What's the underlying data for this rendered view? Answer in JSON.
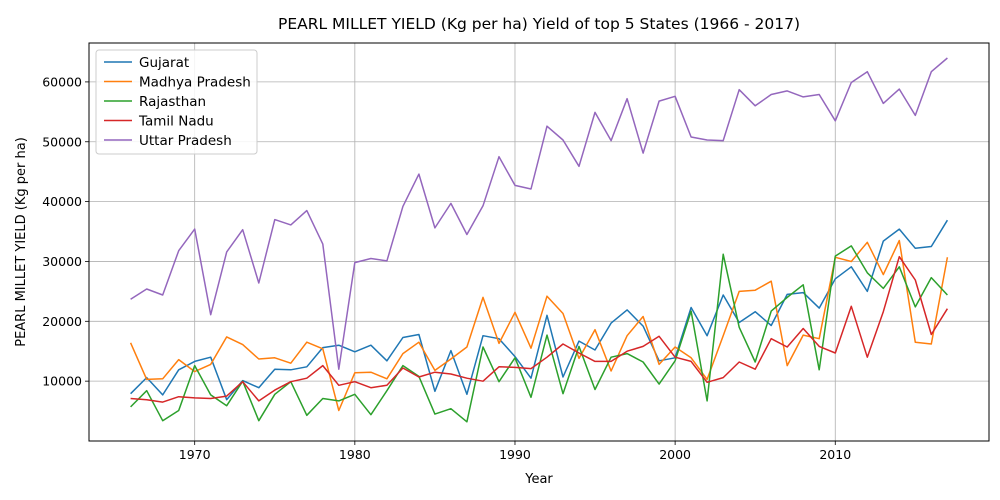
{
  "chart_data": {
    "type": "line",
    "title": "PEARL MILLET YIELD (Kg per ha) Yield of top 5 States (1966 - 2017)",
    "xlabel": "Year",
    "ylabel": "PEARL MILLET YIELD (Kg per ha)",
    "xlim": [
      1963.4,
      2019.6
    ],
    "ylim": [
      0,
      66500
    ],
    "xticks": [
      1970,
      1980,
      1990,
      2000,
      2010
    ],
    "yticks": [
      10000,
      20000,
      30000,
      40000,
      50000,
      60000
    ],
    "grid": true,
    "legend_position": "upper-left",
    "x": [
      1966,
      1967,
      1968,
      1969,
      1970,
      1971,
      1972,
      1973,
      1974,
      1975,
      1976,
      1977,
      1978,
      1979,
      1980,
      1981,
      1982,
      1983,
      1984,
      1985,
      1986,
      1987,
      1988,
      1989,
      1990,
      1991,
      1992,
      1993,
      1994,
      1995,
      1996,
      1997,
      1998,
      1999,
      2000,
      2001,
      2002,
      2003,
      2004,
      2005,
      2006,
      2007,
      2008,
      2009,
      2010,
      2011,
      2012,
      2013,
      2014,
      2015,
      2016,
      2017
    ],
    "series": [
      {
        "name": "Gujarat",
        "color": "#1f77b4",
        "values": [
          7900,
          10600,
          7700,
          11900,
          13300,
          14000,
          6900,
          10100,
          8900,
          12000,
          11900,
          12400,
          15600,
          16000,
          14900,
          16000,
          13400,
          17300,
          17800,
          8300,
          15100,
          7800,
          17600,
          17100,
          14100,
          10500,
          21000,
          10700,
          16700,
          15200,
          19700,
          21900,
          19200,
          13400,
          13900,
          22300,
          17600,
          24400,
          19800,
          21600,
          19300,
          24500,
          24800,
          22200,
          27100,
          29100,
          25000,
          33400,
          35400,
          32200,
          32500,
          36900
        ]
      },
      {
        "name": "Madhya Pradesh",
        "color": "#ff7f0e",
        "values": [
          16400,
          10300,
          10400,
          13600,
          11600,
          12800,
          17400,
          16100,
          13700,
          13900,
          13000,
          16500,
          15400,
          5100,
          11400,
          11500,
          10400,
          14600,
          16500,
          11800,
          13700,
          15700,
          24000,
          16300,
          21500,
          15500,
          24200,
          21300,
          13800,
          18600,
          11700,
          17600,
          20800,
          12800,
          15700,
          13900,
          10300,
          17600,
          25000,
          25200,
          26700,
          12600,
          17700,
          17100,
          30700,
          30000,
          33200,
          27800,
          33500,
          16500,
          16200,
          30700
        ]
      },
      {
        "name": "Rajasthan",
        "color": "#2ca02c",
        "values": [
          5700,
          8400,
          3400,
          5100,
          12600,
          7700,
          5900,
          10000,
          3400,
          7800,
          9900,
          4300,
          7100,
          6700,
          7800,
          4400,
          8400,
          12600,
          10800,
          4500,
          5400,
          3200,
          15700,
          9900,
          13900,
          7300,
          17700,
          7900,
          15800,
          8600,
          14000,
          14600,
          13200,
          9500,
          13400,
          21700,
          6700,
          31200,
          19000,
          13200,
          21700,
          24000,
          26100,
          11900,
          30900,
          32600,
          28100,
          25500,
          29100,
          22400,
          27300,
          24400
        ]
      },
      {
        "name": "Tamil Nadu",
        "color": "#d62728",
        "values": [
          7100,
          6900,
          6500,
          7400,
          7200,
          7100,
          7500,
          9900,
          6700,
          8500,
          9900,
          10500,
          12600,
          9300,
          9900,
          8900,
          9300,
          12200,
          10700,
          11500,
          11200,
          10500,
          10000,
          12400,
          12300,
          12100,
          14000,
          16200,
          14700,
          13300,
          13300,
          15000,
          15800,
          17500,
          14000,
          13300,
          9800,
          10600,
          13200,
          12000,
          17100,
          15700,
          18800,
          15800,
          14700,
          22500,
          14000,
          21600,
          30800,
          26900,
          17800,
          22100
        ]
      },
      {
        "name": "Uttar Pradesh",
        "color": "#9467bd",
        "values": [
          23700,
          25400,
          24400,
          31800,
          35400,
          21100,
          31600,
          35300,
          26400,
          37000,
          36100,
          38500,
          32900,
          12000,
          29800,
          30500,
          30100,
          39200,
          44600,
          35600,
          39700,
          34500,
          39300,
          47500,
          42700,
          42100,
          52600,
          50300,
          45900,
          54900,
          50200,
          57200,
          48100,
          56800,
          57600,
          50800,
          50300,
          50200,
          58700,
          56000,
          57900,
          58500,
          57500,
          57900,
          53500,
          59900,
          61700,
          56400,
          58800,
          54400,
          61700,
          64000
        ]
      }
    ]
  }
}
